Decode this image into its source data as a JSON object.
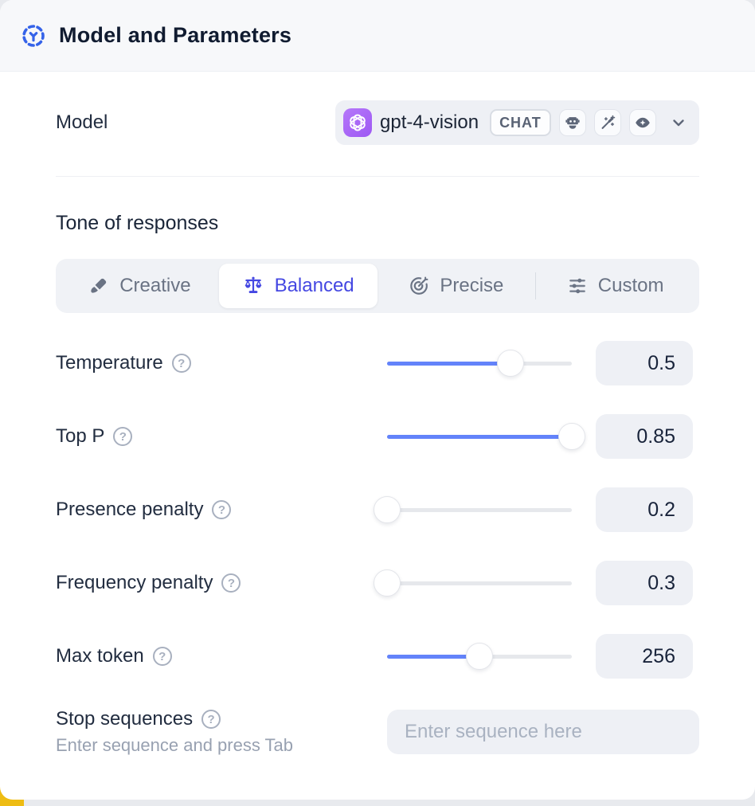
{
  "header": {
    "title": "Model and Parameters"
  },
  "model_row": {
    "label": "Model",
    "selected_model": "gpt-4-vision",
    "badge": "CHAT",
    "capability_icons": [
      "robot-icon",
      "magic-wand-icon",
      "vision-eye-icon"
    ]
  },
  "tone": {
    "heading": "Tone of responses",
    "options": [
      {
        "label": "Creative",
        "icon": "brush-icon",
        "active": false,
        "divider_before": false
      },
      {
        "label": "Balanced",
        "icon": "balance-scale-icon",
        "active": true,
        "divider_before": false
      },
      {
        "label": "Precise",
        "icon": "target-icon",
        "active": false,
        "divider_before": false
      },
      {
        "label": "Custom",
        "icon": "sliders-icon",
        "active": false,
        "divider_before": true
      }
    ]
  },
  "parameters": [
    {
      "label": "Temperature",
      "value": "0.5",
      "slider_percent": 67
    },
    {
      "label": "Top P",
      "value": "0.85",
      "slider_percent": 100
    },
    {
      "label": "Presence penalty",
      "value": "0.2",
      "slider_percent": 0
    },
    {
      "label": "Frequency penalty",
      "value": "0.3",
      "slider_percent": 0
    },
    {
      "label": "Max token",
      "value": "256",
      "slider_percent": 50
    }
  ],
  "stop_sequences": {
    "label": "Stop sequences",
    "hint": "Enter sequence and press Tab",
    "placeholder": "Enter sequence here"
  },
  "colors": {
    "header_icon_blue": "#3563e9",
    "active_tone": "#4447e2",
    "slider_fill": "#6383fa",
    "model_logo_purple": "#a864f8",
    "corner_accent_yellow": "#eebc13"
  }
}
